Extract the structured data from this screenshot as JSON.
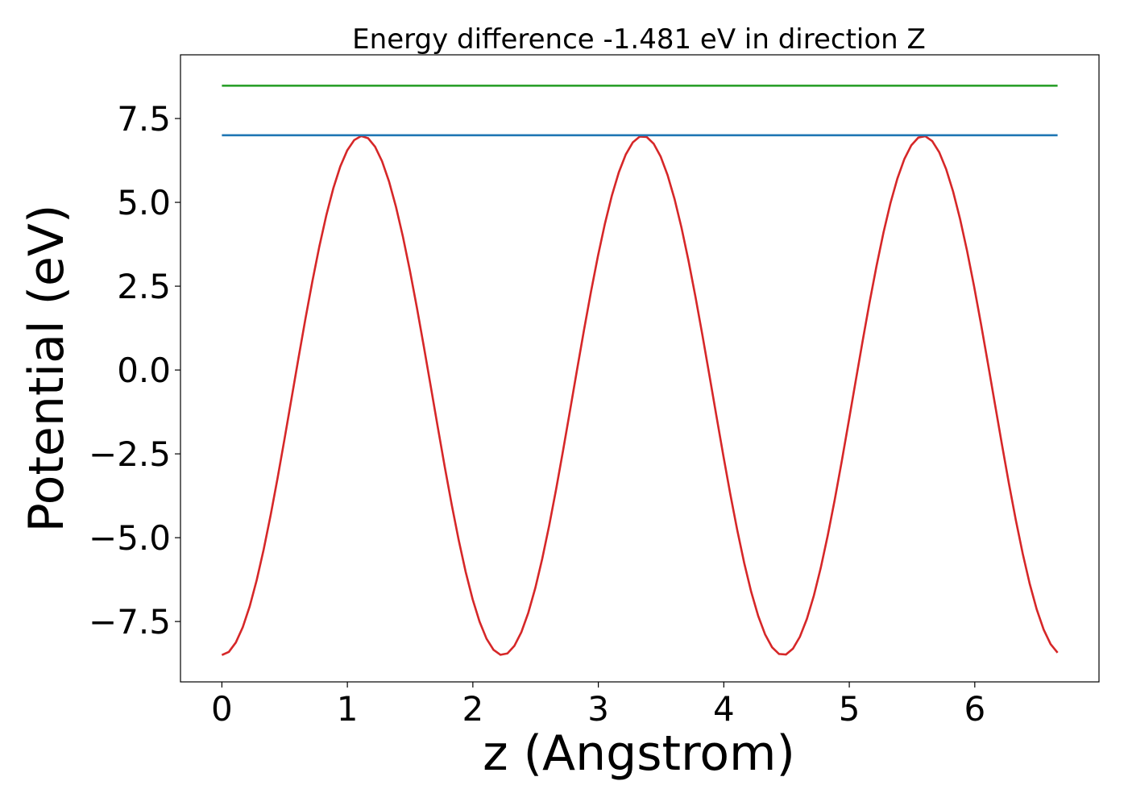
{
  "chart_data": {
    "type": "line",
    "title": "Energy difference -1.481 eV in direction Z",
    "xlabel": "z (Angstrom)",
    "ylabel": "Potential (eV)",
    "xlim": [
      -0.33,
      6.99
    ],
    "ylim": [
      -9.3,
      9.4
    ],
    "xticks": [
      0,
      1,
      2,
      3,
      4,
      5,
      6
    ],
    "xtick_labels": [
      "0",
      "1",
      "2",
      "3",
      "4",
      "5",
      "6"
    ],
    "yticks": [
      -7.5,
      -5.0,
      -2.5,
      0.0,
      2.5,
      5.0,
      7.5
    ],
    "ytick_labels": [
      "−7.5",
      "−5.0",
      "−2.5",
      "0.0",
      "2.5",
      "5.0",
      "7.5"
    ],
    "grid": false,
    "series": [
      {
        "kind": "curve",
        "color": "#d62728",
        "x_start": 0.0,
        "x_end": 6.66,
        "points": 121,
        "center": -0.76,
        "amplitude": 7.74,
        "period": 2.236,
        "min_at": 0.0
      },
      {
        "kind": "hline",
        "color": "#1f77b4",
        "y": 7.0,
        "x_start": 0.0,
        "x_end": 6.66
      },
      {
        "kind": "hline",
        "color": "#2ca02c",
        "y": 8.48,
        "x_start": 0.0,
        "x_end": 6.66
      }
    ]
  }
}
